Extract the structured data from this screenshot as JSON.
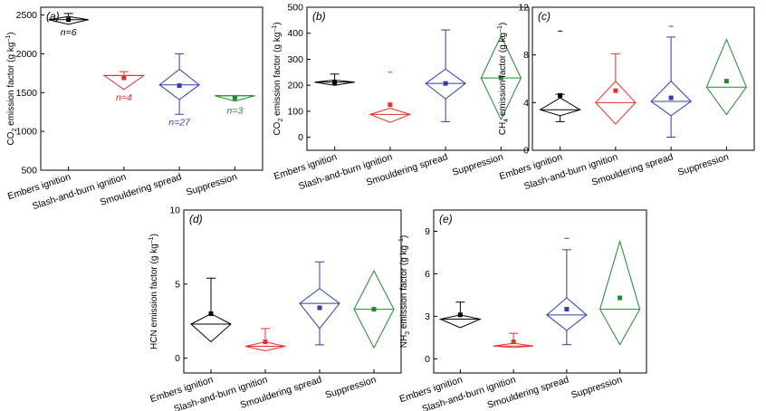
{
  "figure": {
    "categories": [
      "Embers ignition",
      "Slash-and-burn ignition",
      "Smouldering spread",
      "Suppression"
    ],
    "colors": [
      "#000000",
      "#e8302a",
      "#2f3fb0",
      "#1a8c2e"
    ],
    "ylabel_suffix": " emission factor (g kg",
    "ylabel_sup": "–1",
    "ylabel_close": ")"
  },
  "chart_data": [
    {
      "type": "box",
      "panel_label": "(a)",
      "species": "CO",
      "species_sub": "2",
      "ylim": [
        500,
        2600
      ],
      "yticks": [
        500,
        1000,
        1500,
        2000,
        2500
      ],
      "boxes": [
        {
          "category": "Embers ignition",
          "min": 2380,
          "q1": 2380,
          "median": 2440,
          "q3": 2480,
          "max": 2520,
          "mean": 2440,
          "n_label": "n=6"
        },
        {
          "category": "Slash-and-burn ignition",
          "min": 1540,
          "q1": 1540,
          "median": 1720,
          "q3": 1720,
          "max": 1770,
          "mean": 1690,
          "n_label": "n=4"
        },
        {
          "category": "Smouldering spread",
          "min": 1220,
          "q1": 1410,
          "median": 1600,
          "q3": 1800,
          "max": 2000,
          "mean": 1590,
          "n_label": "n=27"
        },
        {
          "category": "Suppression",
          "min": 1390,
          "q1": 1390,
          "median": 1460,
          "q3": 1460,
          "max": 1460,
          "mean": 1430,
          "n_label": "n=3"
        }
      ]
    },
    {
      "type": "box",
      "panel_label": "(b)",
      "species": "CO",
      "species_sub": "2",
      "ylim": [
        -50,
        500
      ],
      "yticks": [
        0,
        100,
        200,
        300,
        400,
        500
      ],
      "boxes": [
        {
          "category": "Embers ignition",
          "min": 200,
          "q1": 200,
          "median": 212,
          "q3": 220,
          "max": 243,
          "mean": 210,
          "outlier": null
        },
        {
          "category": "Slash-and-burn ignition",
          "min": 57,
          "q1": 57,
          "median": 88,
          "q3": 112,
          "max": 112,
          "mean": 125,
          "outlier": 250
        },
        {
          "category": "Smouldering spread",
          "min": 60,
          "q1": 148,
          "median": 207,
          "q3": 262,
          "max": 413,
          "mean": 207,
          "outlier": null
        },
        {
          "category": "Suppression",
          "min": 68,
          "q1": 68,
          "median": 228,
          "q3": 390,
          "max": 390,
          "mean": 228,
          "outlier": null
        }
      ]
    },
    {
      "type": "box",
      "panel_label": "(c)",
      "species": "CH",
      "species_sub": "4",
      "ylim": [
        0,
        12
      ],
      "yticks": [
        0,
        4,
        8,
        12
      ],
      "boxes": [
        {
          "category": "Embers ignition",
          "min": 2.4,
          "q1": 2.9,
          "median": 3.4,
          "q3": 4.4,
          "max": 4.7,
          "mean": 4.6,
          "outlier": 10.0
        },
        {
          "category": "Slash-and-burn ignition",
          "min": 2.2,
          "q1": 2.2,
          "median": 4.0,
          "q3": 5.8,
          "max": 8.1,
          "mean": 5.0,
          "outlier": null
        },
        {
          "category": "Smouldering spread",
          "min": 1.1,
          "q1": 2.9,
          "median": 4.1,
          "q3": 5.8,
          "max": 9.5,
          "mean": 4.4,
          "outlier": 10.4
        },
        {
          "category": "Suppression",
          "min": 3.0,
          "q1": 3.0,
          "median": 5.3,
          "q3": 9.3,
          "max": 9.3,
          "mean": 5.8,
          "outlier": null
        }
      ]
    },
    {
      "type": "box",
      "panel_label": "(d)",
      "species": "HCN",
      "species_sub": "",
      "ylim": [
        -1,
        10
      ],
      "yticks": [
        0,
        5,
        10
      ],
      "boxes": [
        {
          "category": "Embers ignition",
          "min": 1.1,
          "q1": 1.1,
          "median": 2.3,
          "q3": 3.0,
          "max": 5.4,
          "mean": 3.0,
          "outlier": null
        },
        {
          "category": "Slash-and-burn ignition",
          "min": 0.5,
          "q1": 0.5,
          "median": 0.8,
          "q3": 1.1,
          "max": 2.0,
          "mean": 1.1,
          "outlier": null
        },
        {
          "category": "Smouldering spread",
          "min": 0.9,
          "q1": 2.0,
          "median": 3.7,
          "q3": 4.7,
          "max": 6.5,
          "mean": 3.4,
          "outlier": null
        },
        {
          "category": "Suppression",
          "min": 0.7,
          "q1": 0.7,
          "median": 3.3,
          "q3": 5.9,
          "max": 5.9,
          "mean": 3.3,
          "outlier": null
        }
      ]
    },
    {
      "type": "box",
      "panel_label": "(e)",
      "species": "NH",
      "species_sub": "3",
      "ylim": [
        -1,
        10.5
      ],
      "yticks": [
        0,
        3,
        6,
        9
      ],
      "boxes": [
        {
          "category": "Embers ignition",
          "min": 2.2,
          "q1": 2.2,
          "median": 2.8,
          "q3": 3.1,
          "max": 4.0,
          "mean": 3.1,
          "outlier": null
        },
        {
          "category": "Slash-and-burn ignition",
          "min": 0.8,
          "q1": 0.8,
          "median": 0.9,
          "q3": 1.1,
          "max": 1.8,
          "mean": 1.2,
          "outlier": null
        },
        {
          "category": "Smouldering spread",
          "min": 1.0,
          "q1": 2.0,
          "median": 3.1,
          "q3": 4.3,
          "max": 7.7,
          "mean": 3.5,
          "outlier": 8.5
        },
        {
          "category": "Suppression",
          "min": 1.0,
          "q1": 1.0,
          "median": 3.5,
          "q3": 8.3,
          "max": 8.3,
          "mean": 4.3,
          "outlier": null
        }
      ]
    }
  ]
}
